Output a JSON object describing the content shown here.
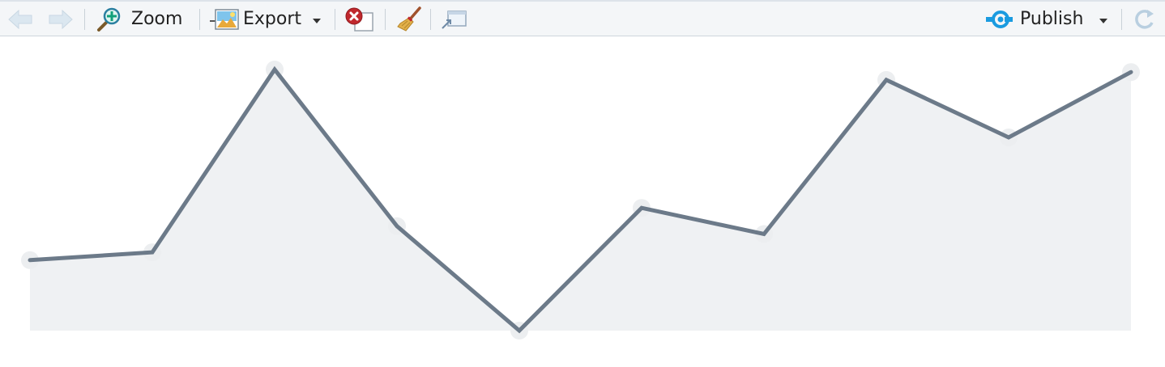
{
  "toolbar": {
    "zoom_label": "Zoom",
    "export_label": "Export",
    "publish_label": "Publish",
    "icons": {
      "back": "arrow-left-icon",
      "forward": "arrow-right-icon",
      "zoom": "magnifier-plus-icon",
      "export": "image-export-icon",
      "remove": "remove-plot-icon",
      "clear": "broom-icon",
      "popout": "popout-window-icon",
      "publish": "publish-icon",
      "refresh": "refresh-icon"
    },
    "colors": {
      "publish_accent": "#1a9be0",
      "remove_red": "#c0282d"
    }
  },
  "chart_data": {
    "type": "area",
    "x": [
      1,
      2,
      3,
      4,
      5,
      6,
      7,
      8,
      9,
      10
    ],
    "values": [
      0.27,
      0.3,
      1.0,
      0.4,
      0.0,
      0.47,
      0.37,
      0.96,
      0.74,
      0.99
    ],
    "line_color": "#6c7a89",
    "fill_color": "#eff1f3",
    "marker_color": "#eceef0",
    "grid": false,
    "legend": "none"
  }
}
